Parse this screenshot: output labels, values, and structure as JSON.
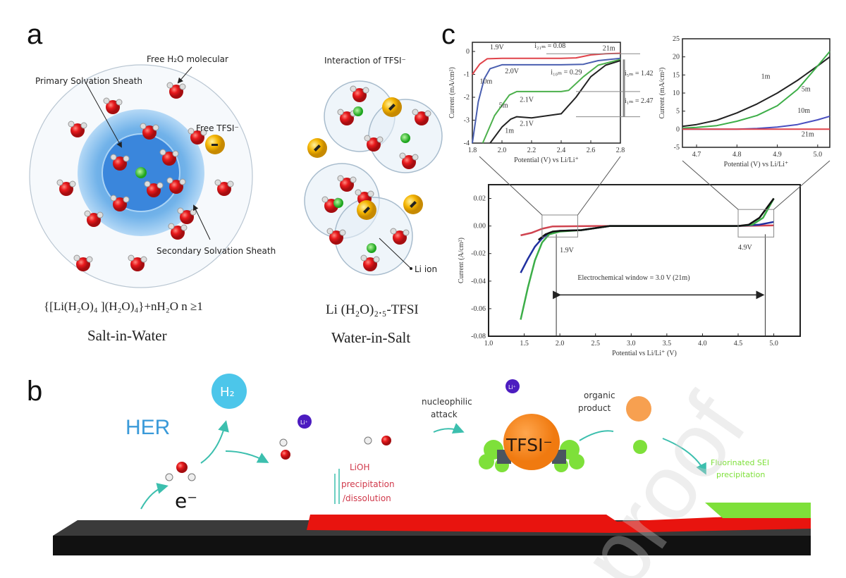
{
  "panels": {
    "a": "a",
    "b": "b",
    "c": "c"
  },
  "panel_a": {
    "left": {
      "free_h2o": "Free H₂O molecular",
      "primary": "Primary  Solvation Sheath",
      "free_tfsi": "Free TFSI⁻",
      "secondary": "Secondary Solvation Sheath",
      "formula": "{[Li(H₂O)₄ ](H₂O)₄}+nH₂O n ≥1",
      "title": "Salt-in-Water"
    },
    "right": {
      "interaction": "Interaction of TFSI⁻",
      "li_ion": "Li ion",
      "formula": "Li (H₂O)₂.₅-TFSI",
      "title": "Water-in-Salt"
    },
    "colors": {
      "water_o": "#e8191c",
      "li": "#2ec02e",
      "tfsi": "#f4b400",
      "sheath": "#5aa6e6"
    }
  },
  "panel_b": {
    "her": "HER",
    "h2": "H₂",
    "electron": "e⁻",
    "li_plus": "Li⁺",
    "nucleophilic": [
      "nucleophilic",
      "attack"
    ],
    "organic": [
      "organic",
      "product"
    ],
    "tfsi": "TFSI⁻",
    "lioh": [
      "LiOH",
      "precipitation",
      "/dissolution"
    ],
    "sei": [
      "Fluorinated SEI",
      "precipitation"
    ],
    "colors": {
      "her": "#3a9ad9",
      "h2": "#4cc6ea",
      "lioh": "#d0384a",
      "sei": "#7ee03a",
      "tfsi": "#f58a1f",
      "electrode": "#111111",
      "layer": "#e8140f"
    }
  },
  "watermark": "proof",
  "chart_data": [
    {
      "type": "line",
      "xlabel": "Potential (V) vs Li/Li⁺",
      "ylabel": "Current (mA/cm²)",
      "xlim": [
        1.8,
        2.8
      ],
      "ylim": [
        -4,
        0.4
      ],
      "xticks": [
        1.8,
        2.0,
        2.2,
        2.4,
        2.6,
        2.8
      ],
      "xtick_labels": [
        "1.8",
        "2.0",
        "2.2",
        "2.4",
        "2.6",
        "2.8"
      ],
      "yticks": [
        0,
        -1,
        -2,
        -3,
        -4
      ],
      "ytick_labels": [
        "0",
        "-1",
        "-2",
        "-3",
        "-4"
      ],
      "series": [
        {
          "name": "21m",
          "color": "#e0434a",
          "x": [
            1.8,
            1.85,
            1.9,
            2.0,
            2.2,
            2.4,
            2.5,
            2.6,
            2.7,
            2.8
          ],
          "y": [
            -1.0,
            -0.55,
            -0.32,
            -0.3,
            -0.3,
            -0.3,
            -0.28,
            -0.15,
            -0.1,
            -0.08
          ]
        },
        {
          "name": "10m",
          "color": "#4a5fb0",
          "x": [
            1.8,
            1.84,
            1.88,
            1.92,
            2.0,
            2.2,
            2.4,
            2.55,
            2.65,
            2.8
          ],
          "y": [
            -4.0,
            -2.2,
            -1.2,
            -0.75,
            -0.58,
            -0.58,
            -0.58,
            -0.56,
            -0.4,
            -0.3
          ]
        },
        {
          "name": "5m",
          "color": "#4cb04c",
          "x": [
            1.87,
            1.95,
            2.05,
            2.1,
            2.2,
            2.4,
            2.45,
            2.55,
            2.65,
            2.8
          ],
          "y": [
            -4.0,
            -2.8,
            -1.9,
            -1.75,
            -1.75,
            -1.75,
            -1.7,
            -1.1,
            -0.6,
            -0.35
          ]
        },
        {
          "name": "1m",
          "color": "#222222",
          "x": [
            1.92,
            2.0,
            2.06,
            2.1,
            2.2,
            2.4,
            2.5,
            2.6,
            2.7,
            2.8
          ],
          "y": [
            -4.0,
            -3.3,
            -2.95,
            -2.85,
            -2.9,
            -2.72,
            -2.0,
            -1.1,
            -0.6,
            -0.4
          ]
        }
      ],
      "annotations": [
        "1.9V",
        "2.0V",
        "2.1V",
        "2.1V",
        "i₂₁ₘ = 0.08",
        "i₁₀ₘ = 0.29",
        "i₅ₘ = 1.42",
        "i₁ₘ = 2.47"
      ],
      "curve_labels": [
        "10m",
        "5m",
        "1m",
        "21m"
      ]
    },
    {
      "type": "line",
      "xlabel": "Potential (V) vs Li/Li⁺",
      "ylabel": "Current (mA/cm²)",
      "xlim": [
        4.665,
        5.03
      ],
      "ylim": [
        -5,
        25
      ],
      "xticks": [
        4.7,
        4.8,
        4.9,
        5.0
      ],
      "xtick_labels": [
        "4.7",
        "4.8",
        "4.9",
        "5.0"
      ],
      "yticks": [
        -5,
        0,
        5,
        10,
        15,
        20,
        25
      ],
      "ytick_labels": [
        "-5",
        "0",
        "5",
        "10",
        "15",
        "20",
        "25"
      ],
      "series": [
        {
          "name": "1m",
          "color": "#222222",
          "x": [
            4.665,
            4.7,
            4.75,
            4.8,
            4.85,
            4.9,
            4.95,
            5.0,
            5.03
          ],
          "y": [
            0.8,
            1.3,
            2.5,
            4.5,
            7.0,
            10.0,
            13.5,
            17.5,
            20.0
          ]
        },
        {
          "name": "5m",
          "color": "#3dae48",
          "x": [
            4.665,
            4.7,
            4.75,
            4.8,
            4.85,
            4.9,
            4.95,
            5.0,
            5.03
          ],
          "y": [
            0.3,
            0.5,
            1.0,
            2.2,
            3.8,
            6.5,
            11.0,
            17.5,
            21.5
          ]
        },
        {
          "name": "10m",
          "color": "#4a4fc0",
          "x": [
            4.665,
            4.8,
            4.85,
            4.9,
            4.95,
            5.0,
            5.03
          ],
          "y": [
            0,
            0,
            0.2,
            0.6,
            1.3,
            2.6,
            3.6
          ]
        },
        {
          "name": "21m",
          "color": "#e0434a",
          "x": [
            4.665,
            5.03
          ],
          "y": [
            0,
            0
          ]
        }
      ],
      "curve_labels": [
        "1m",
        "5m",
        "10m",
        "21m"
      ]
    },
    {
      "type": "line",
      "xlabel": "Potential vs Li/Li⁺ (V)",
      "ylabel": "Current (A/cm²)",
      "xlim": [
        1.0,
        5.37
      ],
      "ylim": [
        -0.08,
        0.03
      ],
      "xticks": [
        1.0,
        1.5,
        2.0,
        2.5,
        3.0,
        3.5,
        4.0,
        4.5,
        5.0
      ],
      "xtick_labels": [
        "1.0",
        "1.5",
        "2.0",
        "2.5",
        "3.0",
        "3.5",
        "4.0",
        "4.5",
        "5.0"
      ],
      "yticks": [
        0.02,
        0.0,
        -0.02,
        -0.04,
        -0.06,
        -0.08
      ],
      "ytick_labels": [
        "0.02",
        "0.00",
        "-0.02",
        "-0.04",
        "-0.06",
        "-0.08"
      ],
      "series": [
        {
          "name": "21m",
          "color": "#d04450",
          "x": [
            1.45,
            1.6,
            1.75,
            1.9,
            2.5,
            3.5,
            4.5,
            5.0
          ],
          "y": [
            -0.0068,
            -0.005,
            -0.002,
            -0.0003,
            0,
            0,
            0,
            0.0005
          ]
        },
        {
          "name": "10m",
          "color": "#2030a0",
          "x": [
            1.45,
            1.55,
            1.65,
            1.75,
            1.85,
            2.0,
            2.3,
            2.7,
            4.5,
            4.8,
            5.0
          ],
          "y": [
            -0.034,
            -0.024,
            -0.015,
            -0.009,
            -0.005,
            -0.0035,
            -0.003,
            0,
            0,
            0.001,
            0.003
          ]
        },
        {
          "name": "5m",
          "color": "#3cae48",
          "x": [
            1.45,
            1.55,
            1.65,
            1.75,
            1.85,
            2.0,
            2.3,
            2.7,
            4.5,
            4.7,
            4.85,
            5.0
          ],
          "y": [
            -0.068,
            -0.045,
            -0.025,
            -0.012,
            -0.006,
            -0.004,
            -0.003,
            0,
            0,
            0.001,
            0.006,
            0.02
          ]
        },
        {
          "name": "1m",
          "color": "#111111",
          "x": [
            1.7,
            1.8,
            1.9,
            2.0,
            2.3,
            2.7,
            4.5,
            4.65,
            4.8,
            5.0
          ],
          "y": [
            -0.01,
            -0.006,
            -0.004,
            -0.0035,
            -0.003,
            0,
            0,
            0.001,
            0.006,
            0.02
          ]
        }
      ],
      "markers": {
        "lower_limit_v": 1.95,
        "upper_limit_v": 4.88
      },
      "zoom_boxes": [
        {
          "x": [
            1.75,
            2.25
          ],
          "y": [
            -0.008,
            0.008
          ]
        },
        {
          "x": [
            4.5,
            5.0
          ],
          "y": [
            -0.008,
            0.012
          ]
        }
      ],
      "annotations": {
        "low": "1.9V",
        "high": "4.9V",
        "window": "Electrochemical window = 3.0 V (21m)"
      }
    }
  ]
}
